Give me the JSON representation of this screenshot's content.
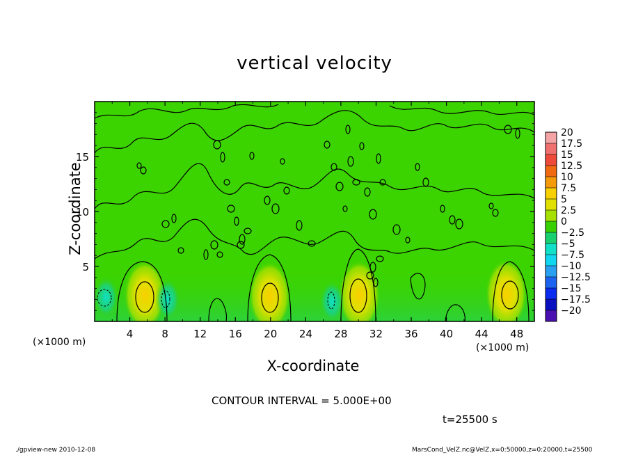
{
  "chart_data": {
    "type": "heatmap",
    "title": "vertical velocity",
    "xlabel": "X-coordinate",
    "ylabel": "Z-coordinate",
    "x_unit_label": "(×1000 m)",
    "x_ticks": [
      4,
      8,
      12,
      16,
      20,
      24,
      28,
      32,
      36,
      40,
      44,
      48
    ],
    "y_ticks": [
      5,
      10,
      15
    ],
    "xlim": [
      0,
      50
    ],
    "ylim": [
      0,
      20
    ],
    "colorbar": {
      "levels": [
        20,
        17.5,
        15,
        12.5,
        10,
        7.5,
        5,
        2.5,
        0,
        -2.5,
        -5,
        -7.5,
        -10,
        -12.5,
        -15,
        -17.5,
        -20
      ],
      "labels": [
        "20",
        "17.5",
        "15",
        "12.5",
        "10",
        "7.5",
        "5",
        "2.5",
        "0",
        "−2.5",
        "−5",
        "−7.5",
        "−10",
        "−12.5",
        "−15",
        "−17.5",
        "−20"
      ],
      "colors": [
        "#f4a4a4",
        "#f07070",
        "#ee4a3a",
        "#f06a12",
        "#f59a08",
        "#f8d000",
        "#e0e000",
        "#a6e000",
        "#38d000",
        "#18d070",
        "#10e0c8",
        "#10d6f0",
        "#2aa0f0",
        "#1c64f0",
        "#0a2cf0",
        "#0a10c0",
        "#4a10b0"
      ]
    },
    "updraft_centers": [
      {
        "x": 5.7,
        "z": 2.4,
        "w": 7
      },
      {
        "x": 19.9,
        "z": 2.3,
        "w": 6
      },
      {
        "x": 30.1,
        "z": 2.4,
        "w": 6.5
      },
      {
        "x": 46.8,
        "z": 2.5,
        "w": 6
      }
    ],
    "downdraft_centers": [
      {
        "x": 1.3,
        "z": 2.2,
        "w": -4
      },
      {
        "x": 8.3,
        "z": 2.0,
        "w": -4
      },
      {
        "x": 27.0,
        "z": 1.8,
        "w": -4
      }
    ],
    "contour_interval": "CONTOUR INTERVAL = 5.000E+00",
    "time": "t=25500 s"
  },
  "footer": {
    "left": "./gpview-new   2010-12-08",
    "right": "MarsCond_VelZ.nc@VelZ,x=0:50000,z=0:20000,t=25500"
  }
}
